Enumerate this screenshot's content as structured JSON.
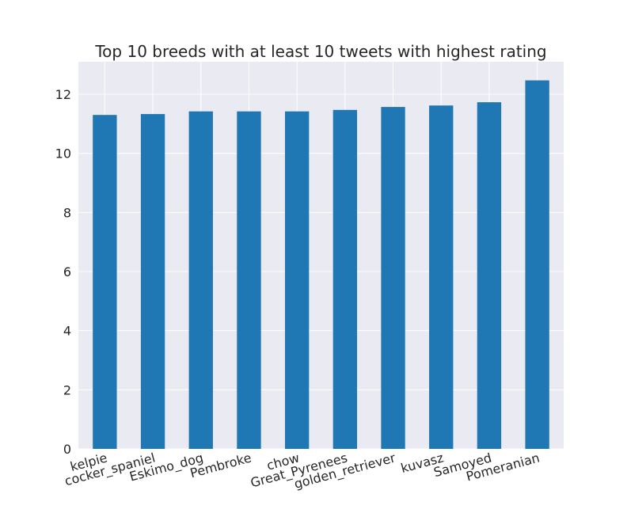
{
  "chart_data": {
    "type": "bar",
    "title": "Top 10 breeds with at least 10 tweets with highest rating",
    "xlabel": "",
    "ylabel": "",
    "categories": [
      "kelpie",
      "cocker_spaniel",
      "Eskimo_dog",
      "Pembroke",
      "chow",
      "Great_Pyrenees",
      "golden_retriever",
      "kuvasz",
      "Samoyed",
      "Pomeranian"
    ],
    "values": [
      11.3,
      11.33,
      11.42,
      11.42,
      11.42,
      11.47,
      11.57,
      11.62,
      11.73,
      12.47
    ],
    "ylim": [
      0,
      13.1
    ],
    "yticks": [
      "0",
      "2",
      "4",
      "6",
      "8",
      "10",
      "12"
    ],
    "grid": true,
    "bar_color": "#1f77b4",
    "plot_background": "#eaeaf2",
    "grid_color": "#ffffff"
  }
}
